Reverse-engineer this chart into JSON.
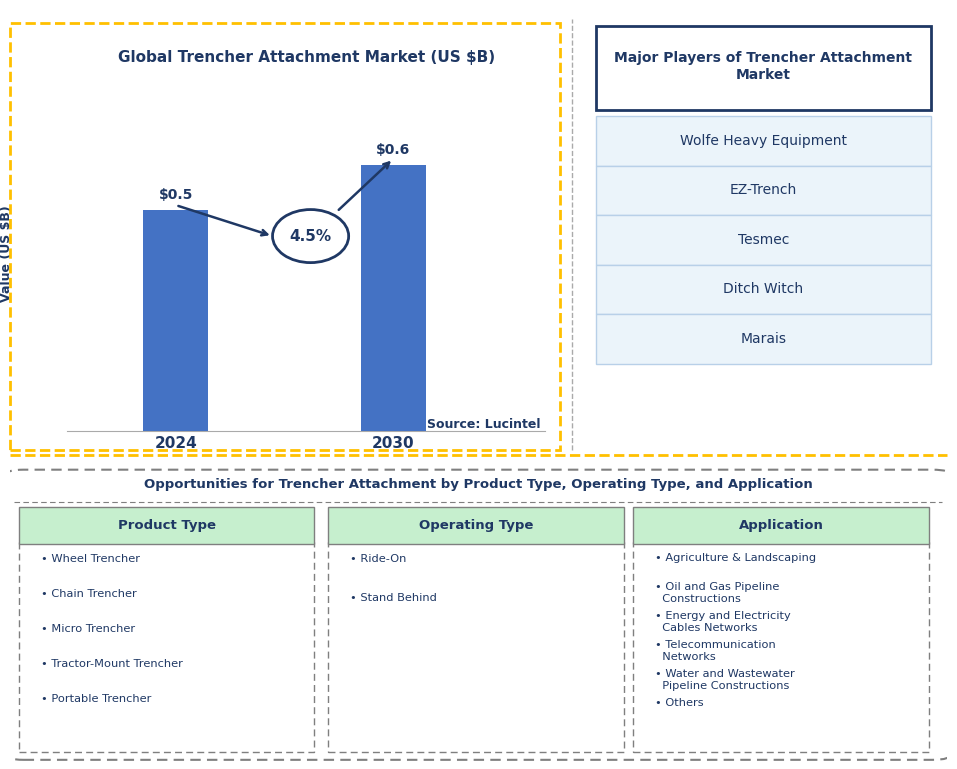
{
  "chart_title": "Global Trencher Attachment Market (US $B)",
  "bar_years": [
    "2024",
    "2030"
  ],
  "bar_values": [
    0.5,
    0.6
  ],
  "bar_labels": [
    "$0.5",
    "$0.6"
  ],
  "bar_color": "#4472C4",
  "ylabel": "Value (US $B)",
  "cagr_text": "4.5%",
  "source_text": "Source: Lucintel",
  "dark_blue": "#1F3864",
  "medium_blue": "#4472C4",
  "players_title": "Major Players of Trencher Attachment\nMarket",
  "players": [
    "Wolfe Heavy Equipment",
    "EZ-Trench",
    "Tesmec",
    "Ditch Witch",
    "Marais"
  ],
  "player_border_color": "#B8D0E8",
  "opportunities_title": "Opportunities for Trencher Attachment by Product Type, Operating Type, and Application",
  "col_headers": [
    "Product Type",
    "Operating Type",
    "Application"
  ],
  "col1_items": [
    "• Wheel Trencher",
    "• Chain Trencher",
    "• Micro Trencher",
    "• Tractor-Mount Trencher",
    "• Portable Trencher"
  ],
  "col2_items": [
    "• Ride-On",
    "• Stand Behind"
  ],
  "col3_items": [
    "• Agriculture & Landscaping",
    "• Oil and Gas Pipeline\n  Constructions",
    "• Energy and Electricity\n  Cables Networks",
    "• Telecommunication\n  Networks",
    "• Water and Wastewater\n  Pipeline Constructions",
    "• Others"
  ],
  "orange_border": "#FFC000",
  "light_green": "#C6EFCE",
  "light_blue_bg": "#EBF4FA",
  "white": "#FFFFFF"
}
